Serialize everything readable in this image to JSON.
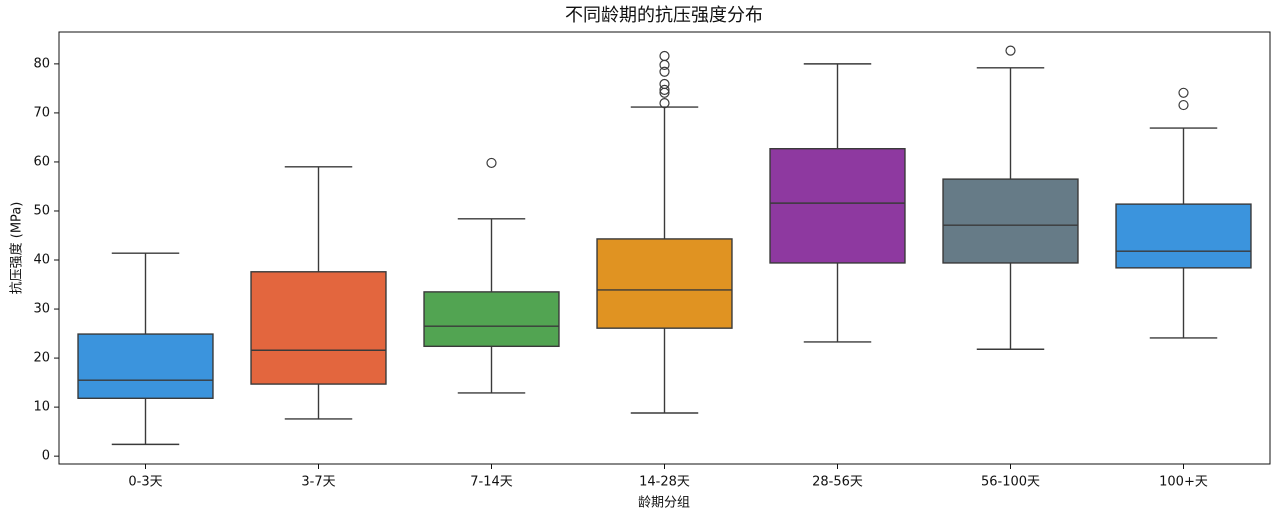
{
  "chart_data": {
    "type": "box",
    "title": "不同龄期的抗压强度分布",
    "x_label": "龄期分组",
    "y_label": "抗压强度 (MPa)",
    "categories": [
      "0-3天",
      "3-7天",
      "7-14天",
      "14-28天",
      "28-56天",
      "56-100天",
      "100+天"
    ],
    "boxes": [
      {
        "whislo": 2.4,
        "q1": 11.8,
        "med": 15.5,
        "q3": 24.9,
        "whishi": 41.4,
        "fliers": [],
        "color": "#3b94dd"
      },
      {
        "whislo": 7.6,
        "q1": 14.7,
        "med": 21.6,
        "q3": 37.6,
        "whishi": 59.0,
        "fliers": [],
        "color": "#e3663e"
      },
      {
        "whislo": 12.9,
        "q1": 22.4,
        "med": 26.5,
        "q3": 33.5,
        "whishi": 48.4,
        "fliers": [
          59.8
        ],
        "color": "#52a452"
      },
      {
        "whislo": 8.8,
        "q1": 26.1,
        "med": 33.9,
        "q3": 44.3,
        "whishi": 71.2,
        "fliers": [
          81.6,
          79.8,
          78.4,
          75.9,
          74.7,
          74.1,
          72.0
        ],
        "color": "#e09322"
      },
      {
        "whislo": 23.3,
        "q1": 39.4,
        "med": 51.6,
        "q3": 62.7,
        "whishi": 80.0,
        "fliers": [],
        "color": "#8e39a0"
      },
      {
        "whislo": 21.8,
        "q1": 39.4,
        "med": 47.1,
        "q3": 56.5,
        "whishi": 79.2,
        "fliers": [
          82.7
        ],
        "color": "#667b87"
      },
      {
        "whislo": 24.1,
        "q1": 38.4,
        "med": 41.8,
        "q3": 51.4,
        "whishi": 66.9,
        "fliers": [
          74.1,
          71.6
        ],
        "color": "#3b94dd"
      }
    ],
    "ylim": [
      -1.6,
      86.5
    ],
    "yticks": [
      0,
      10,
      20,
      30,
      40,
      50,
      60,
      70,
      80
    ]
  }
}
